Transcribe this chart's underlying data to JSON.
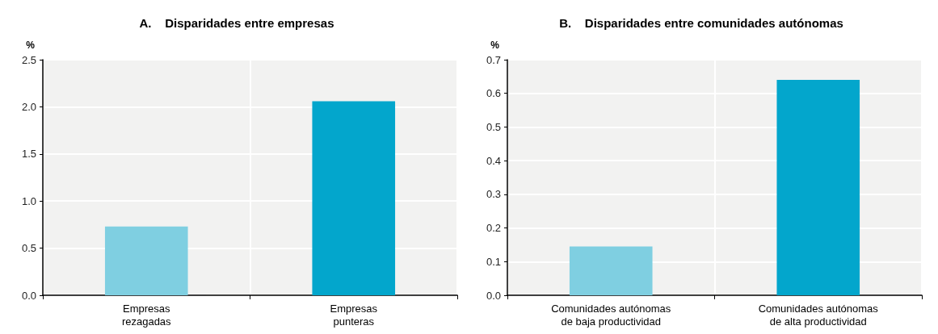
{
  "chart_data": [
    {
      "type": "bar",
      "title": "A.    Disparidades entre empresas",
      "ylabel": "%",
      "categories": [
        "Empresas\nrezagadas",
        "Empresas\npunteras"
      ],
      "values": [
        0.73,
        2.06
      ],
      "colors": [
        "#7fcfe1",
        "#03a6cc"
      ],
      "ylim": [
        0,
        2.5
      ],
      "yticks": [
        {
          "value": 0,
          "label": "0.0"
        },
        {
          "value": 0.5,
          "label": "0.5"
        },
        {
          "value": 1,
          "label": "1.0"
        },
        {
          "value": 1.5,
          "label": "1.5"
        },
        {
          "value": 2,
          "label": "2.0"
        },
        {
          "value": 2.5,
          "label": "2.5"
        }
      ],
      "grid": true
    },
    {
      "type": "bar",
      "title": "B.    Disparidades entre comunidades autónomas",
      "ylabel": "%",
      "categories": [
        "Comunidades autónomas\nde baja productividad",
        "Comunidades autónomas\nde alta productividad"
      ],
      "values": [
        0.145,
        0.64
      ],
      "colors": [
        "#7fcfe1",
        "#03a6cc"
      ],
      "ylim": [
        0,
        0.7
      ],
      "yticks": [
        {
          "value": 0,
          "label": "0.0"
        },
        {
          "value": 0.1,
          "label": "0.1"
        },
        {
          "value": 0.2,
          "label": "0.2"
        },
        {
          "value": 0.3,
          "label": "0.3"
        },
        {
          "value": 0.4,
          "label": "0.4"
        },
        {
          "value": 0.5,
          "label": "0.5"
        },
        {
          "value": 0.6,
          "label": "0.6"
        },
        {
          "value": 0.7,
          "label": "0.7"
        }
      ],
      "grid": true
    }
  ]
}
